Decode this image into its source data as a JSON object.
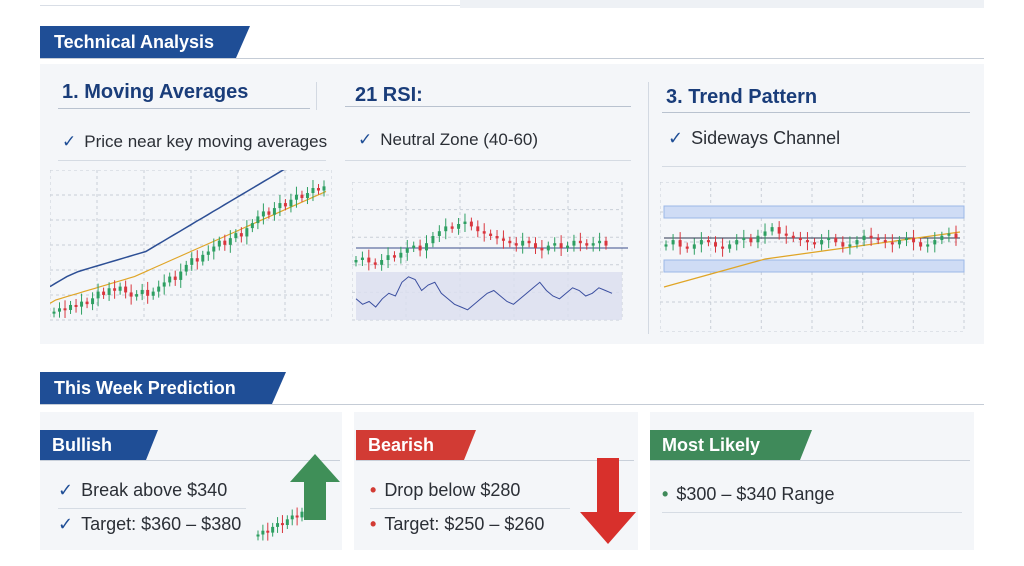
{
  "technical": {
    "header": "Technical Analysis",
    "columns": [
      {
        "title": "1.  Moving Averages",
        "subtitle": "Price near key moving averages",
        "mark": "✓"
      },
      {
        "title": "21 RSI:",
        "subtitle": "Neutral Zone (40-60)",
        "mark": "✓"
      },
      {
        "title": "3. Trend Pattern",
        "subtitle": "Sideways Channel",
        "mark": "✓"
      }
    ]
  },
  "prediction": {
    "header": "This Week Prediction",
    "bullish": {
      "label": "Bullish",
      "color": "#1f4e96",
      "arrow_color": "#3f8f58",
      "arrow_icon": "up-arrow-icon",
      "lines": [
        {
          "mark": "✓",
          "text": "Break above $340"
        },
        {
          "mark": "✓",
          "text": "Target: $360 – $380"
        }
      ]
    },
    "bearish": {
      "label": "Bearish",
      "color": "#d23b34",
      "arrow_color": "#d8302c",
      "arrow_icon": "down-arrow-icon",
      "lines": [
        {
          "mark": "•",
          "text": "Drop below $280"
        },
        {
          "mark": "•",
          "text": "Target: $250 – $260"
        }
      ]
    },
    "likely": {
      "label": "Most Likely",
      "color": "#3f8a5a",
      "lines": [
        {
          "mark": "•",
          "text": "$300 – $340 Range"
        }
      ]
    }
  },
  "colors": {
    "up": "#2e9f62",
    "down": "#d9363e",
    "ma_fast": "#e0a526",
    "ma_slow": "#2d4f95",
    "rsi_line": "#3b4fa0",
    "channel": "#9bb8e8"
  },
  "chart_data": [
    {
      "type": "candlestick",
      "series": [
        {
          "name": "",
          "values": [
            10,
            14,
            12,
            18,
            16,
            22,
            19,
            26,
            34,
            30,
            38,
            35,
            40,
            33,
            28,
            31,
            36,
            29,
            34,
            40,
            45,
            52,
            48,
            58,
            66,
            74,
            70,
            78,
            82,
            88,
            95,
            90,
            98,
            104,
            100,
            110,
            116,
            124,
            130,
            126,
            134,
            140,
            136,
            144,
            150,
            146,
            152,
            158,
            155,
            160
          ]
        },
        {
          "name": "",
          "values": [
            40,
            44,
            48,
            52,
            55,
            58,
            60,
            62,
            64,
            66,
            68,
            70,
            72,
            74,
            76,
            78,
            80,
            82,
            86,
            90,
            94,
            98,
            102,
            106,
            110,
            114,
            118,
            122,
            126,
            130,
            134,
            138,
            142,
            146,
            150,
            154,
            158,
            162,
            166,
            170,
            174,
            178,
            182,
            186,
            190,
            194,
            198,
            202,
            206,
            210
          ]
        },
        {
          "name": "",
          "values": [
            20,
            24,
            26,
            28,
            30,
            32,
            34,
            36,
            38,
            40,
            42,
            44,
            46,
            48,
            50,
            52,
            55,
            58,
            61,
            64,
            67,
            70,
            73,
            76,
            79,
            82,
            85,
            88,
            91,
            94,
            97,
            100,
            103,
            106,
            109,
            112,
            115,
            118,
            121,
            124,
            127,
            130,
            133,
            136,
            139,
            142,
            145,
            148,
            151,
            154
          ]
        }
      ]
    },
    {
      "type": "candlestick",
      "series": [
        {
          "name": "",
          "values": [
            50,
            52,
            48,
            46,
            50,
            54,
            52,
            56,
            60,
            62,
            58,
            64,
            70,
            74,
            78,
            76,
            80,
            82,
            78,
            74,
            72,
            70,
            68,
            66,
            64,
            62,
            66,
            64,
            60,
            58,
            62,
            64,
            60,
            62,
            66,
            64,
            62,
            64,
            66,
            62
          ]
        },
        {
          "name": "",
          "values": [
            44,
            40,
            42,
            38,
            44,
            48,
            46,
            56,
            60,
            58,
            50,
            54,
            56,
            48,
            44,
            40,
            38,
            36,
            40,
            44,
            48,
            50,
            46,
            42,
            40,
            44,
            48,
            52,
            56,
            50,
            46,
            44,
            48,
            52,
            50,
            46,
            48,
            52,
            50,
            48
          ]
        }
      ]
    },
    {
      "type": "candlestick",
      "series": [
        {
          "name": "",
          "values": [
            60,
            64,
            58,
            56,
            60,
            64,
            62,
            58,
            56,
            60,
            64,
            66,
            62,
            68,
            72,
            76,
            70,
            68,
            66,
            64,
            62,
            60,
            64,
            66,
            62,
            58,
            60,
            64,
            68,
            66,
            64,
            62,
            60,
            64,
            66,
            62,
            58,
            60,
            64,
            68,
            70,
            66
          ]
        },
        {
          "name": "",
          "values": [
            10,
            14,
            18,
            22,
            26,
            30,
            34,
            38,
            42,
            46,
            50,
            54,
            58,
            62,
            66,
            68,
            70,
            72,
            74,
            76,
            78,
            80,
            82,
            84,
            86,
            88,
            90,
            92,
            94,
            96,
            98,
            100,
            102,
            104,
            106,
            108,
            110,
            112,
            114,
            116,
            118,
            120
          ]
        }
      ]
    },
    {
      "type": "candlestick",
      "series": [
        {
          "name": "",
          "values": [
            10,
            14,
            12,
            18,
            22,
            20,
            26,
            30,
            28,
            34
          ]
        }
      ]
    }
  ]
}
